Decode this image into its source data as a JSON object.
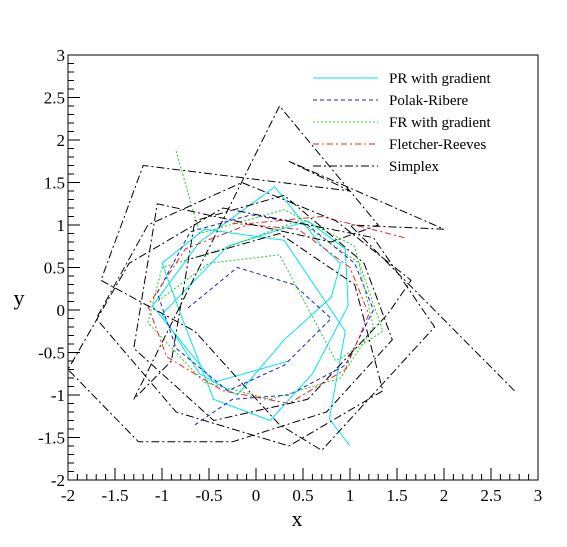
{
  "chart_data": {
    "type": "line",
    "title": "",
    "xlabel": "x",
    "ylabel": "y",
    "xlim": [
      -2,
      3
    ],
    "ylim": [
      -2,
      3
    ],
    "grid": false,
    "legend_position": "top-right",
    "xticks": [
      "-2",
      "-1.5",
      "-1",
      "-0.5",
      "0",
      "0.5",
      "1",
      "1.5",
      "2",
      "2.5",
      "3"
    ],
    "yticks": [
      "-2",
      "-1.5",
      "-1",
      "-0.5",
      "0",
      "0.5",
      "1",
      "1.5",
      "2",
      "2.5",
      "3"
    ],
    "series": [
      {
        "name": "PR with gradient",
        "color": "#00e5ee",
        "dash": "solid",
        "x": [
          1.0,
          0.78,
          0.95,
          0.3,
          -0.55,
          -1.0,
          -0.75,
          -0.45,
          0.15,
          0.6,
          0.98,
          0.95,
          0.55,
          -0.3,
          -1.0,
          -0.6,
          -0.2,
          0.3,
          0.8,
          0.9,
          0.7,
          0.2,
          -0.6,
          -1.1,
          -0.45,
          0.35
        ],
        "y": [
          -1.6,
          -1.28,
          -0.25,
          0.82,
          0.95,
          0.55,
          -0.2,
          -1.05,
          -1.3,
          -0.75,
          0.05,
          0.72,
          1.05,
          0.75,
          -0.05,
          -0.75,
          -1.0,
          -0.35,
          0.15,
          0.55,
          0.75,
          1.45,
          0.8,
          0.05,
          -0.85,
          -0.6
        ]
      },
      {
        "name": "Polak-Ribere",
        "color": "#1c1cd6",
        "dash": "4,3",
        "x": [
          -0.65,
          -0.25,
          0.35,
          0.95,
          1.25,
          1.05,
          0.55,
          -0.05,
          -0.7,
          -1.05,
          -0.85,
          -0.3,
          0.3,
          0.8,
          0.4,
          -0.2,
          -0.75
        ],
        "y": [
          -1.35,
          -1.05,
          -1.0,
          -0.65,
          0.0,
          0.55,
          1.0,
          1.12,
          0.92,
          0.2,
          -0.45,
          -0.95,
          -0.65,
          -0.1,
          0.3,
          0.5,
          0.0
        ]
      },
      {
        "name": "FR with gradient",
        "color": "#22cc22",
        "dash": "2,2",
        "x": [
          -0.85,
          -0.6,
          0.3,
          1.05,
          1.25,
          0.9,
          0.15,
          -0.55,
          -1.15,
          -1.0,
          -0.35,
          0.45,
          1.1,
          1.35,
          0.85,
          0.25,
          -0.5,
          -1.05
        ],
        "y": [
          1.87,
          0.9,
          1.18,
          0.75,
          -0.2,
          -0.8,
          -1.05,
          -0.85,
          -0.15,
          0.5,
          0.72,
          1.05,
          0.55,
          -0.25,
          -0.6,
          0.65,
          0.55,
          0.1
        ]
      },
      {
        "name": "Fletcher-Reeves",
        "color": "#ee2222",
        "dash": "6,3,2,3",
        "x": [
          1.58,
          0.7,
          -0.05,
          -0.75,
          -1.15,
          -0.95,
          -0.35,
          0.35,
          0.95,
          1.2,
          1.0,
          0.45,
          -0.25
        ],
        "y": [
          0.85,
          1.1,
          1.02,
          0.72,
          0.05,
          -0.55,
          -0.95,
          -1.1,
          -0.7,
          -0.05,
          0.5,
          0.95,
          1.02
        ]
      },
      {
        "name": "Simplex",
        "color": "#000000",
        "dash": "8,3,2,3",
        "x": [
          2.75,
          1.0,
          2.0,
          0.35,
          1.0,
          -1.2,
          -1.65,
          -0.65,
          0.25,
          0.7,
          1.9,
          1.25,
          -0.35,
          -1.35,
          -2.0,
          -1.25,
          -0.25,
          0.75,
          1.45,
          1.15,
          0.3,
          -0.65,
          -0.9,
          -1.3,
          0.25,
          1.3,
          0.8,
          -1.05,
          -1.3,
          -0.45,
          0.55,
          1.4,
          1.65,
          0.85,
          -0.15,
          -1.15,
          -1.7,
          -0.85,
          0.35,
          1.35,
          1.05,
          0.25,
          -0.7
        ],
        "y": [
          -0.95,
          1.0,
          0.95,
          1.75,
          1.4,
          1.7,
          0.35,
          -0.25,
          -1.35,
          -1.65,
          -0.2,
          0.85,
          1.2,
          0.55,
          -0.7,
          -1.55,
          -1.55,
          -1.2,
          -0.35,
          0.55,
          1.35,
          1.05,
          -0.6,
          -1.05,
          2.4,
          1.0,
          0.8,
          1.25,
          -0.45,
          -1.3,
          -1.05,
          -0.05,
          0.35,
          1.05,
          1.5,
          1.0,
          -0.1,
          -1.2,
          -1.6,
          -0.95,
          0.3,
          0.9,
          0.6
        ]
      }
    ]
  }
}
